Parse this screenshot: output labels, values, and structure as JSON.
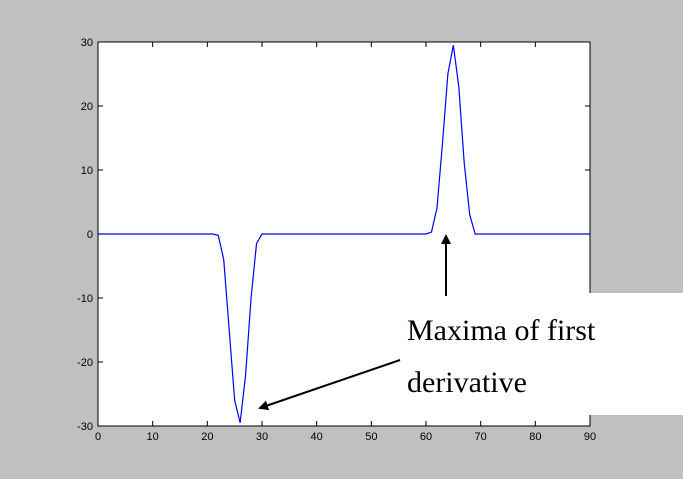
{
  "colors": {
    "figure_background": "#c0c0c0",
    "plot_background": "#ffffff",
    "line": "#0000ff",
    "axes": "#000000",
    "annotation": "#000000"
  },
  "chart_data": {
    "type": "line",
    "title": "",
    "xlabel": "",
    "ylabel": "",
    "xlim": [
      0,
      90
    ],
    "ylim": [
      -30,
      30
    ],
    "grid": false,
    "legend": "none",
    "x_ticks": [
      0,
      10,
      20,
      30,
      40,
      50,
      60,
      70,
      80,
      90
    ],
    "x_tick_labels": [
      "0",
      "10",
      "20",
      "30",
      "40",
      "50",
      "60",
      "70",
      "80",
      "90"
    ],
    "y_ticks": [
      -30,
      -20,
      -10,
      0,
      10,
      20,
      30
    ],
    "y_tick_labels": [
      "-30",
      "-20",
      "-10",
      "0",
      "10",
      "20",
      "30"
    ],
    "series": [
      {
        "x": [
          0,
          21,
          22,
          23,
          24,
          25,
          26,
          27,
          28,
          29,
          30,
          60,
          61,
          62,
          63,
          64,
          65,
          66,
          67,
          68,
          69,
          90
        ],
        "y": [
          0,
          0,
          -0.2,
          -4,
          -15,
          -26,
          -29.5,
          -22,
          -10,
          -1.5,
          0,
          0,
          0.3,
          4,
          14,
          25,
          29.5,
          23,
          11,
          3,
          0,
          0
        ]
      }
    ],
    "annotations": [
      {
        "lines": [
          "Maxima of first",
          "derivative"
        ]
      }
    ]
  }
}
